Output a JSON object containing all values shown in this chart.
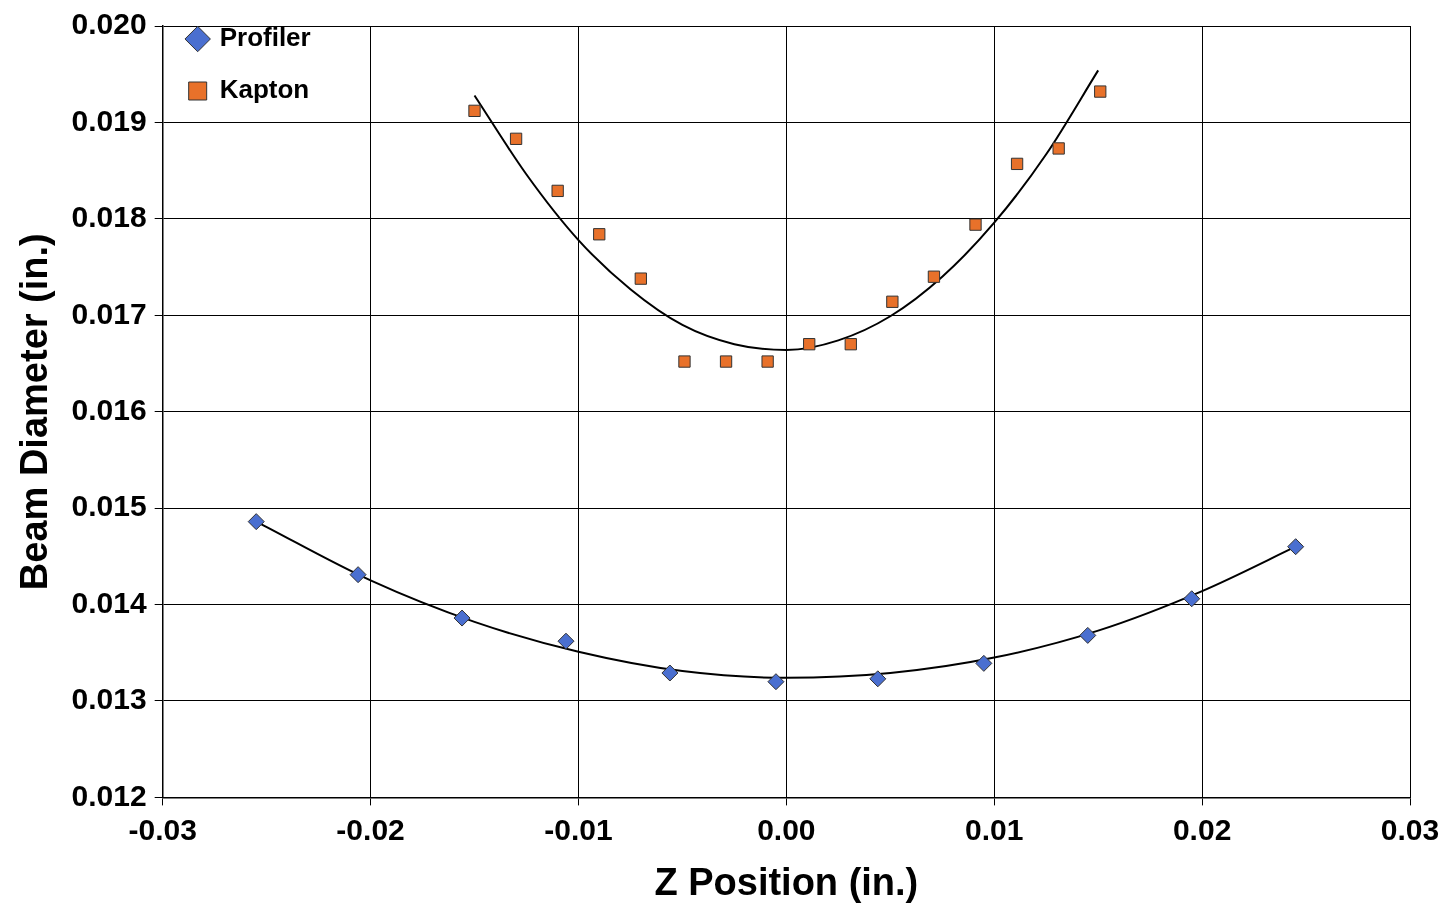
{
  "chart_data": {
    "type": "scatter",
    "xlabel": "Z Position (in.)",
    "ylabel": "Beam Diameter (in.)",
    "xlim": [
      -0.03,
      0.03
    ],
    "ylim": [
      0.012,
      0.02
    ],
    "xticks": [
      {
        "value": -0.03,
        "label": "-0.03"
      },
      {
        "value": -0.02,
        "label": "-0.02"
      },
      {
        "value": -0.01,
        "label": "-0.01"
      },
      {
        "value": 0,
        "label": "0.00"
      },
      {
        "value": 0.01,
        "label": "0.01"
      },
      {
        "value": 0.02,
        "label": "0.02"
      },
      {
        "value": 0.03,
        "label": "0.03"
      }
    ],
    "yticks": [
      {
        "value": 0.012,
        "label": "0.012"
      },
      {
        "value": 0.013,
        "label": "0.013"
      },
      {
        "value": 0.014,
        "label": "0.014"
      },
      {
        "value": 0.015,
        "label": "0.015"
      },
      {
        "value": 0.016,
        "label": "0.016"
      },
      {
        "value": 0.017,
        "label": "0.017"
      },
      {
        "value": 0.018,
        "label": "0.018"
      },
      {
        "value": 0.019,
        "label": "0.019"
      },
      {
        "value": 0.02,
        "label": "0.020"
      }
    ],
    "grid": true,
    "legend": "top left",
    "series": [
      {
        "name": "Profiler",
        "type": "scatter",
        "marker": "diamond",
        "color": "#4a6fd0",
        "x": [
          -0.0255,
          -0.0206,
          -0.0156,
          -0.0106,
          -0.0056,
          -0.0005,
          0.0044,
          0.0095,
          0.0145,
          0.0195,
          0.0245
        ],
        "values": [
          0.01486,
          0.01431,
          0.01386,
          0.01362,
          0.01329,
          0.0132,
          0.01323,
          0.01339,
          0.01368,
          0.01406,
          0.0146
        ]
      },
      {
        "name": "Kapton",
        "type": "scatter",
        "marker": "square",
        "color": "#e8712a",
        "x": [
          -0.015,
          -0.013,
          -0.011,
          -0.009,
          -0.007,
          -0.0049,
          -0.0029,
          -0.0009,
          0.0011,
          0.0031,
          0.0051,
          0.0071,
          0.0091,
          0.0111,
          0.0131,
          0.0151
        ],
        "values": [
          0.01912,
          0.01883,
          0.01829,
          0.01784,
          0.01738,
          0.01652,
          0.01652,
          0.01652,
          0.0167,
          0.0167,
          0.01714,
          0.0174,
          0.01794,
          0.01857,
          0.01873,
          0.01932
        ]
      },
      {
        "type": "line",
        "marker": "none",
        "color": "#000000",
        "x": [
          -0.0255,
          -0.02,
          -0.015,
          -0.01,
          -0.005,
          0,
          0.005,
          0.01,
          0.015,
          0.02,
          0.0245
        ],
        "values": [
          0.01486,
          0.01425,
          0.01382,
          0.01351,
          0.01331,
          0.01324,
          0.01329,
          0.01345,
          0.01373,
          0.01414,
          0.0146
        ]
      },
      {
        "type": "line",
        "marker": "none",
        "color": "#000000",
        "x": [
          -0.015,
          -0.0125,
          -0.01,
          -0.0075,
          -0.005,
          -0.0025,
          0,
          0.0025,
          0.005,
          0.0075,
          0.01,
          0.0125,
          0.015
        ],
        "values": [
          0.01928,
          0.01846,
          0.01778,
          0.01727,
          0.0169,
          0.0167,
          0.01664,
          0.01674,
          0.01699,
          0.0174,
          0.01796,
          0.01867,
          0.01954
        ]
      }
    ]
  }
}
